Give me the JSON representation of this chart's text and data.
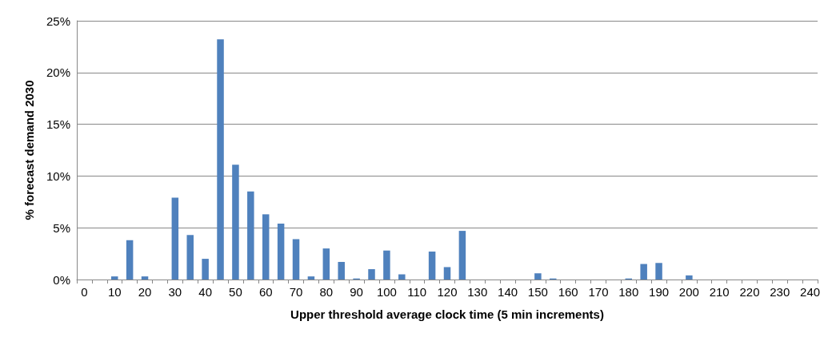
{
  "chart_data": {
    "type": "bar",
    "xlabel": "Upper threshold average clock time (5 min increments)",
    "ylabel": "% forecast demand 2030",
    "categories": [
      "0",
      null,
      "10",
      null,
      "20",
      null,
      "30",
      null,
      "40",
      null,
      "50",
      null,
      "60",
      null,
      "70",
      null,
      "80",
      null,
      "90",
      null,
      "100",
      null,
      "110",
      null,
      "120",
      null,
      "130",
      null,
      "140",
      null,
      "150",
      null,
      "160",
      null,
      "170",
      null,
      "180",
      null,
      "190",
      null,
      "200",
      null,
      "210",
      null,
      "220",
      null,
      "230",
      null,
      "240"
    ],
    "values": [
      0,
      0,
      0.3,
      3.8,
      0.3,
      0,
      7.9,
      4.3,
      2.0,
      23.2,
      11.1,
      8.5,
      6.3,
      5.4,
      3.9,
      0.3,
      3.0,
      1.7,
      0.1,
      1.0,
      2.8,
      0.5,
      0,
      2.7,
      1.2,
      4.7,
      0,
      0,
      0,
      0,
      0.6,
      0.1,
      0,
      0,
      0,
      0,
      0.1,
      1.5,
      1.6,
      0,
      0.4,
      0,
      0,
      0,
      0,
      0,
      0,
      0,
      0
    ],
    "color": "#4f81bd",
    "ylim": [
      0,
      25
    ],
    "yticks": [
      {
        "value": 0,
        "label": "0%"
      },
      {
        "value": 5,
        "label": "5%"
      },
      {
        "value": 10,
        "label": "10%"
      },
      {
        "value": 15,
        "label": "15%"
      },
      {
        "value": 20,
        "label": "20%"
      },
      {
        "value": 25,
        "label": "25%"
      }
    ],
    "grid": "y"
  }
}
